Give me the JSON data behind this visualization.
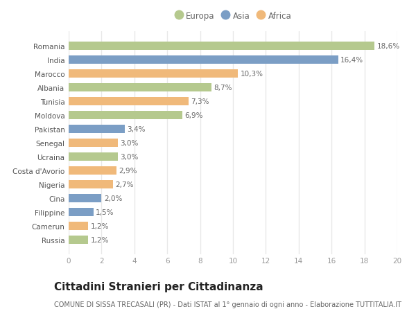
{
  "countries": [
    "Russia",
    "Camerun",
    "Filippine",
    "Cina",
    "Nigeria",
    "Costa d'Avorio",
    "Ucraina",
    "Senegal",
    "Pakistan",
    "Moldova",
    "Tunisia",
    "Albania",
    "Marocco",
    "India",
    "Romania"
  ],
  "values": [
    1.2,
    1.2,
    1.5,
    2.0,
    2.7,
    2.9,
    3.0,
    3.0,
    3.4,
    6.9,
    7.3,
    8.7,
    10.3,
    16.4,
    18.6
  ],
  "labels": [
    "1,2%",
    "1,2%",
    "1,5%",
    "2,0%",
    "2,7%",
    "2,9%",
    "3,0%",
    "3,0%",
    "3,4%",
    "6,9%",
    "7,3%",
    "8,7%",
    "10,3%",
    "16,4%",
    "18,6%"
  ],
  "continents": [
    "Europa",
    "Africa",
    "Asia",
    "Asia",
    "Africa",
    "Africa",
    "Europa",
    "Africa",
    "Asia",
    "Europa",
    "Africa",
    "Europa",
    "Africa",
    "Asia",
    "Europa"
  ],
  "colors": {
    "Europa": "#b5c98e",
    "Asia": "#7b9ec5",
    "Africa": "#f0b97a"
  },
  "title": "Cittadini Stranieri per Cittadinanza",
  "subtitle": "COMUNE DI SISSA TRECASALI (PR) - Dati ISTAT al 1° gennaio di ogni anno - Elaborazione TUTTITALIA.IT",
  "xlim": [
    0,
    20
  ],
  "xticks": [
    0,
    2,
    4,
    6,
    8,
    10,
    12,
    14,
    16,
    18,
    20
  ],
  "background_color": "#ffffff",
  "grid_color": "#e8e8e8",
  "bar_height": 0.6,
  "title_fontsize": 11,
  "subtitle_fontsize": 7,
  "label_fontsize": 7.5,
  "tick_fontsize": 7.5,
  "legend_fontsize": 8.5
}
